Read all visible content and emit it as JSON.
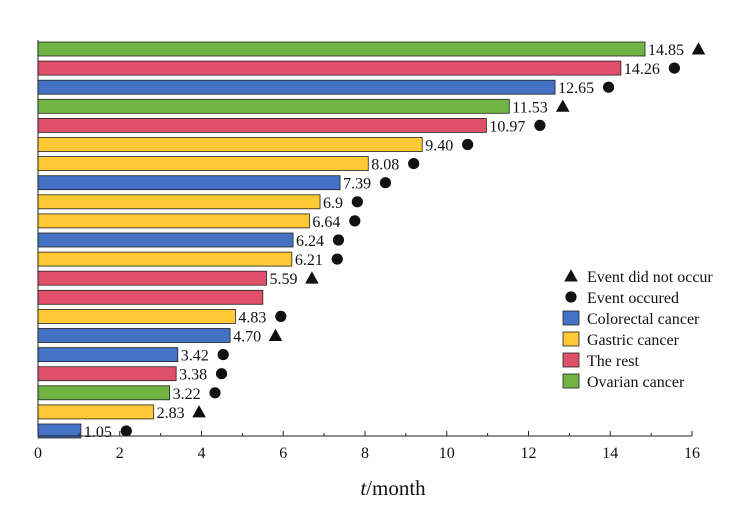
{
  "chart_data": {
    "type": "bar",
    "orientation": "horizontal",
    "xlabel_prefix": "t",
    "xlabel_suffix": "/month",
    "xlim": [
      0,
      16
    ],
    "xticks": [
      0,
      2,
      4,
      6,
      8,
      10,
      12,
      14,
      16
    ],
    "grid": false,
    "legend_position": "bottom-right",
    "categories_colors": {
      "Colorectal cancer": "#4472C4",
      "Gastric cancer": "#FFC935",
      "The rest": "#E0506A",
      "Ovarian cancer": "#70B544"
    },
    "bars": [
      {
        "value": 14.85,
        "label": "14.85",
        "group": "Ovarian cancer",
        "marker": "triangle"
      },
      {
        "value": 14.26,
        "label": "14.26",
        "group": "The rest",
        "marker": "circle"
      },
      {
        "value": 12.65,
        "label": "12.65",
        "group": "Colorectal cancer",
        "marker": "circle"
      },
      {
        "value": 11.53,
        "label": "11.53",
        "group": "Ovarian cancer",
        "marker": "triangle"
      },
      {
        "value": 10.97,
        "label": "10.97",
        "group": "The rest",
        "marker": "circle"
      },
      {
        "value": 9.4,
        "label": "9.40",
        "group": "Gastric cancer",
        "marker": "circle"
      },
      {
        "value": 8.08,
        "label": "8.08",
        "group": "Gastric cancer",
        "marker": "circle"
      },
      {
        "value": 7.39,
        "label": "7.39",
        "group": "Colorectal cancer",
        "marker": "circle"
      },
      {
        "value": 6.9,
        "label": "6.9",
        "group": "Gastric cancer",
        "marker": "circle"
      },
      {
        "value": 6.64,
        "label": "6.64",
        "group": "Gastric cancer",
        "marker": "circle"
      },
      {
        "value": 6.24,
        "label": "6.24",
        "group": "Colorectal cancer",
        "marker": "circle"
      },
      {
        "value": 6.21,
        "label": "6.21",
        "group": "Gastric cancer",
        "marker": "circle"
      },
      {
        "value": 5.59,
        "label": "5.59",
        "group": "The rest",
        "marker": "triangle"
      },
      {
        "value": 5.5,
        "label": "",
        "group": "The rest",
        "marker": "none"
      },
      {
        "value": 4.83,
        "label": "4.83",
        "group": "Gastric cancer",
        "marker": "circle"
      },
      {
        "value": 4.7,
        "label": "4.70",
        "group": "Colorectal cancer",
        "marker": "triangle"
      },
      {
        "value": 3.42,
        "label": "3.42",
        "group": "Colorectal cancer",
        "marker": "circle"
      },
      {
        "value": 3.38,
        "label": "3.38",
        "group": "The rest",
        "marker": "circle"
      },
      {
        "value": 3.22,
        "label": "3.22",
        "group": "Ovarian cancer",
        "marker": "circle"
      },
      {
        "value": 2.83,
        "label": "2.83",
        "group": "Gastric cancer",
        "marker": "triangle"
      },
      {
        "value": 1.05,
        "label": "1.05",
        "group": "Colorectal cancer",
        "marker": "circle"
      }
    ],
    "legend": [
      {
        "kind": "marker",
        "marker": "triangle",
        "label": "Event did not occur"
      },
      {
        "kind": "marker",
        "marker": "circle",
        "label": "Event occured"
      },
      {
        "kind": "swatch",
        "color": "#4472C4",
        "label": "Colorectal cancer"
      },
      {
        "kind": "swatch",
        "color": "#FFC935",
        "label": "Gastric cancer"
      },
      {
        "kind": "swatch",
        "color": "#E0506A",
        "label": "The rest"
      },
      {
        "kind": "swatch",
        "color": "#70B544",
        "label": "Ovarian cancer"
      }
    ]
  }
}
